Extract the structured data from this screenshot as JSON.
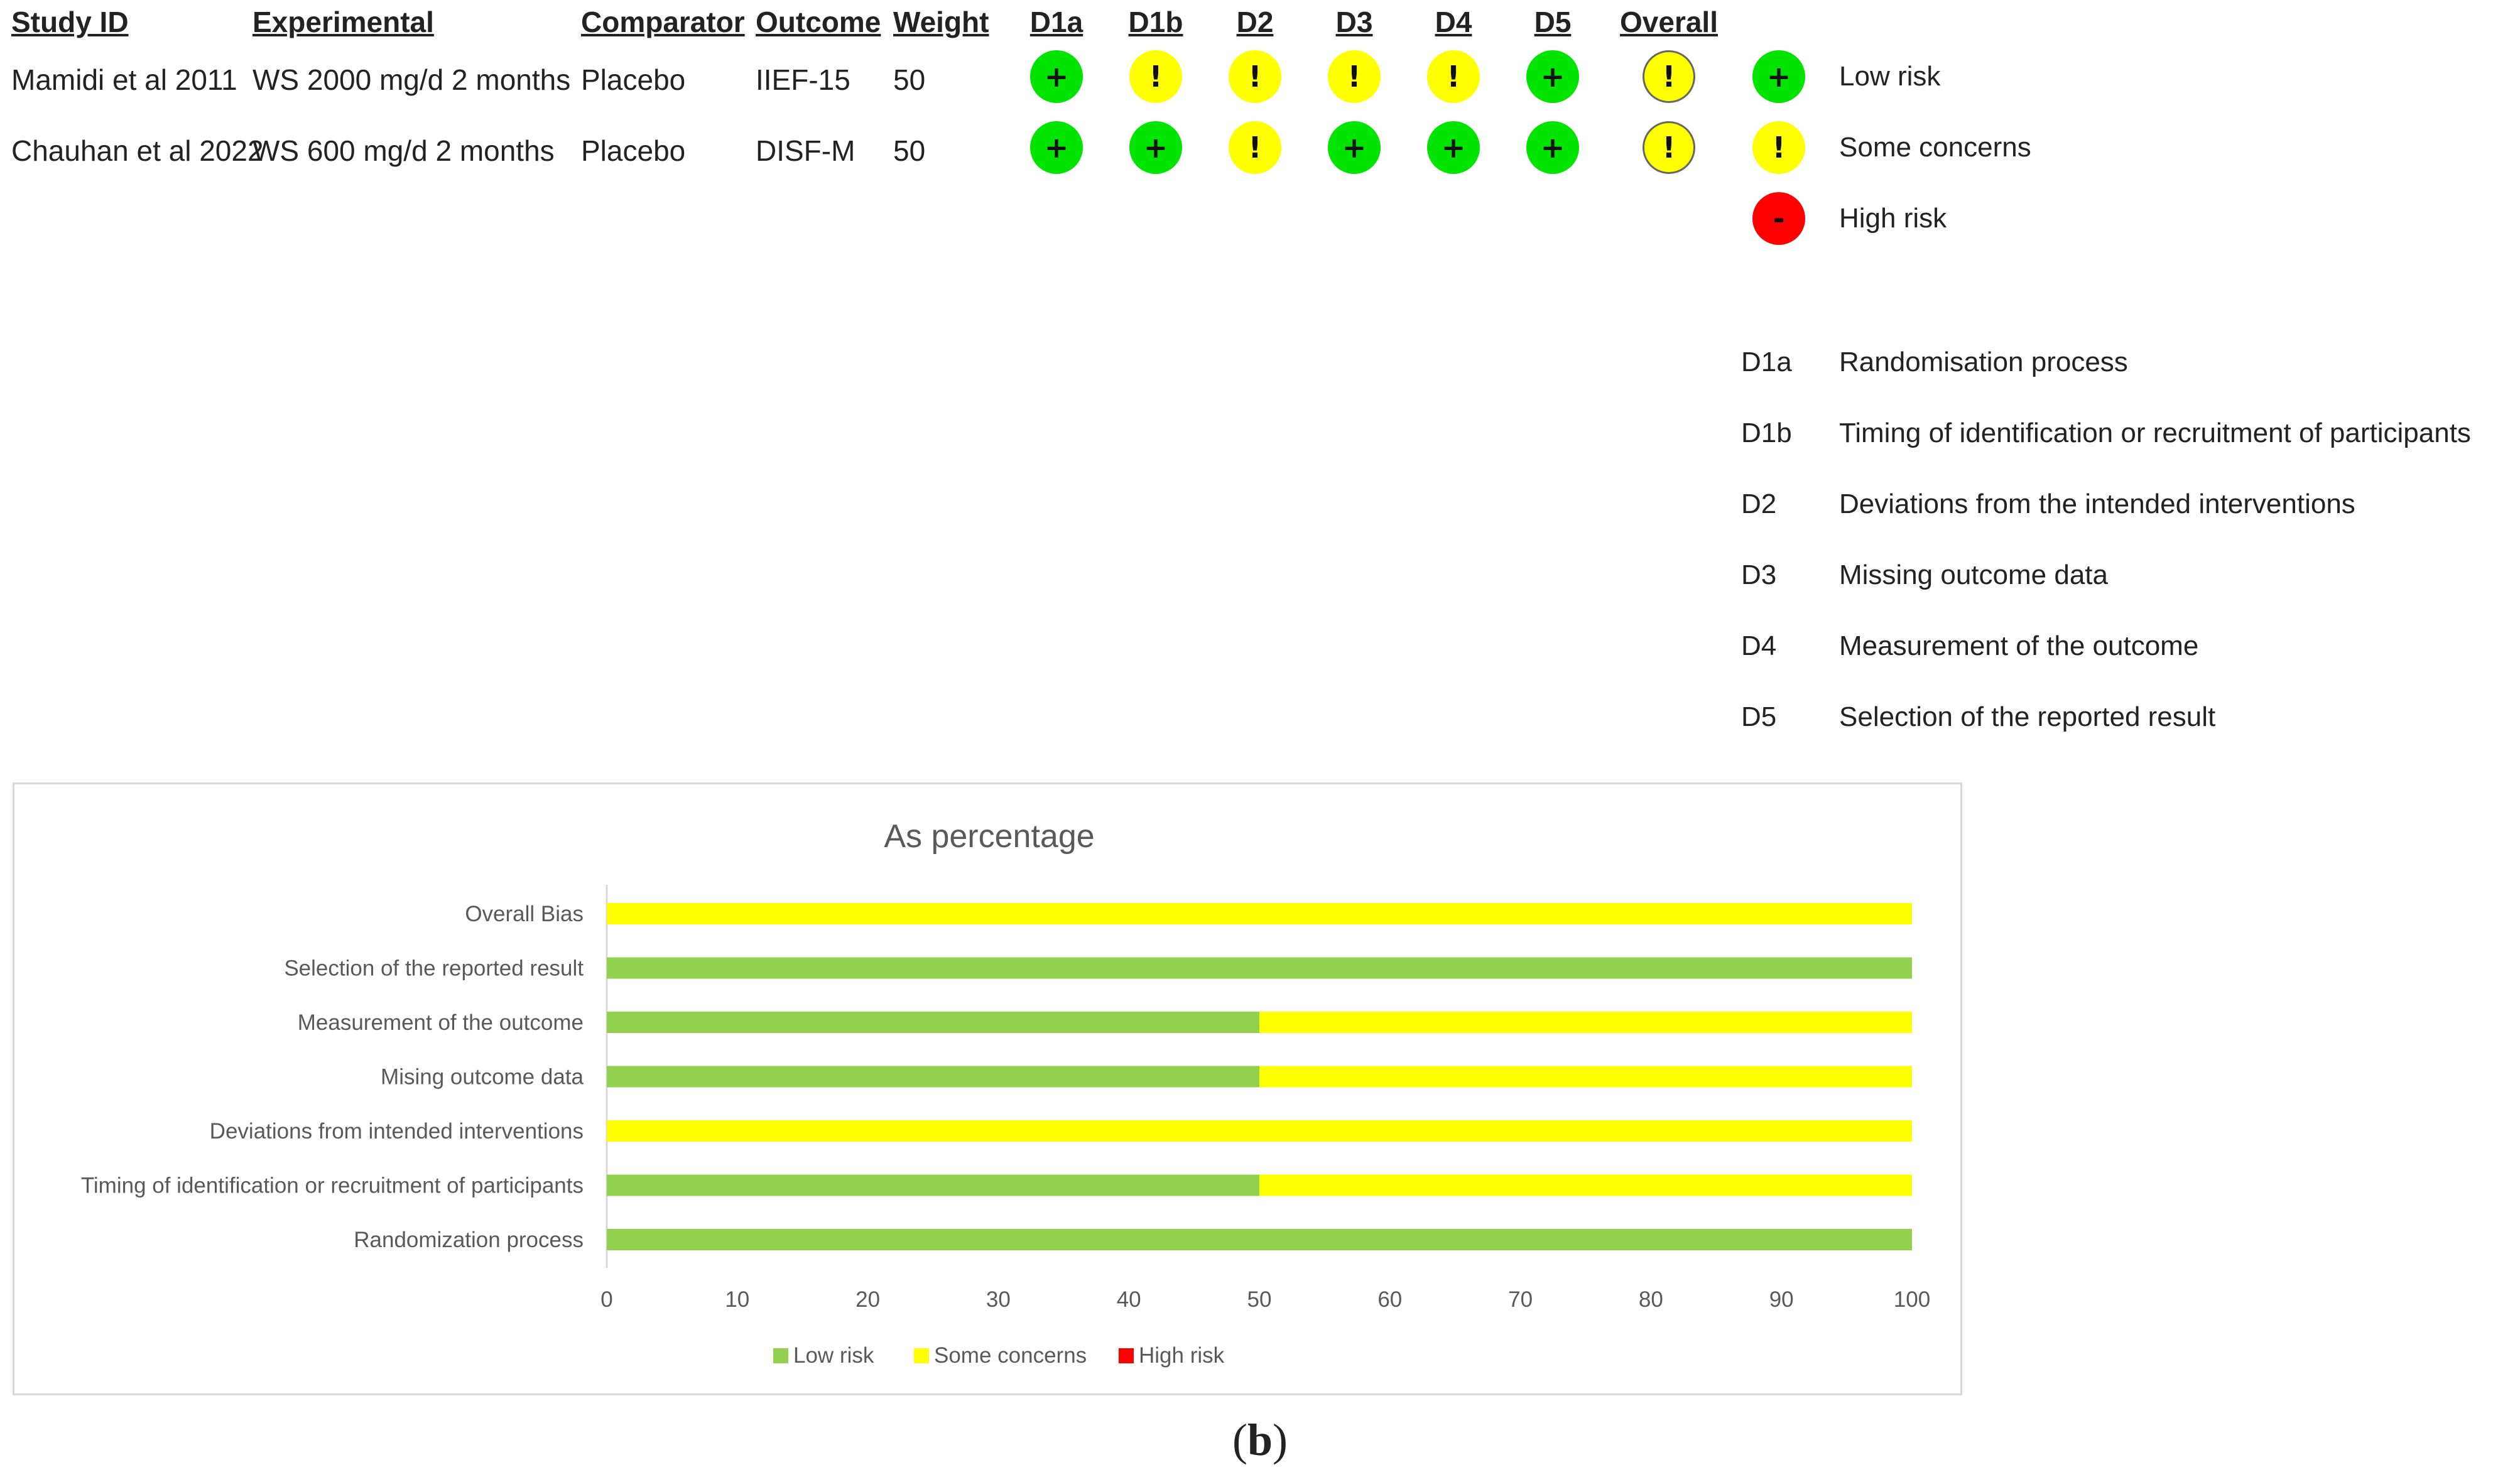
{
  "table": {
    "headers": {
      "study_id": "Study ID",
      "experimental": "Experimental",
      "comparator": "Comparator",
      "outcome": "Outcome",
      "weight": "Weight",
      "domains": [
        "D1a",
        "D1b",
        "D2",
        "D3",
        "D4",
        "D5",
        "Overall"
      ]
    },
    "rows": [
      {
        "study_id": "Mamidi et al 2011",
        "experimental": "WS 2000 mg/d 2 months",
        "comparator": "Placebo",
        "outcome": "IIEF-15",
        "weight": "50",
        "judgements": [
          "low",
          "some",
          "some",
          "some",
          "some",
          "low",
          "some"
        ]
      },
      {
        "study_id": "Chauhan et al 2022",
        "experimental": "WS 600 mg/d 2 months",
        "comparator": "Placebo",
        "outcome": "DISF-M",
        "weight": "50",
        "judgements": [
          "low",
          "low",
          "some",
          "low",
          "low",
          "low",
          "some"
        ]
      }
    ]
  },
  "symbols": {
    "low": "+",
    "some": "!",
    "high": "-"
  },
  "colors": {
    "low": "#00e400",
    "some": "#ffff00",
    "high": "#ff0000",
    "bar_low": "#92d050",
    "bar_some": "#ffff00",
    "bar_high": "#ff0000"
  },
  "legend": [
    {
      "key": "low",
      "label": "Low risk"
    },
    {
      "key": "some",
      "label": "Some concerns"
    },
    {
      "key": "high",
      "label": "High risk"
    }
  ],
  "domain_key": [
    {
      "code": "D1a",
      "description": "Randomisation process"
    },
    {
      "code": "D1b",
      "description": "Timing of identification or recruitment of participants"
    },
    {
      "code": "D2",
      "description": "Deviations from the intended interventions"
    },
    {
      "code": "D3",
      "description": "Missing outcome data"
    },
    {
      "code": "D4",
      "description": "Measurement of the outcome"
    },
    {
      "code": "D5",
      "description": "Selection of the reported result"
    }
  ],
  "chart_data": {
    "type": "bar",
    "orientation": "horizontal",
    "stacked": true,
    "title": "As percentage",
    "xlabel": "",
    "ylabel": "",
    "xlim": [
      0,
      100
    ],
    "xticks": [
      0,
      10,
      20,
      30,
      40,
      50,
      60,
      70,
      80,
      90,
      100
    ],
    "grid": false,
    "legend_position": "bottom",
    "categories": [
      "Overall Bias",
      "Selection of the reported result",
      "Measurement of the outcome",
      "Mising outcome data",
      "Deviations from intended interventions",
      "Timing of identification or recruitment of participants",
      "Randomization process"
    ],
    "series": [
      {
        "name": "Low risk",
        "color": "#92d050",
        "values": [
          0,
          100,
          50,
          50,
          0,
          50,
          100
        ]
      },
      {
        "name": "Some concerns",
        "color": "#ffff00",
        "values": [
          100,
          0,
          50,
          50,
          100,
          50,
          0
        ]
      },
      {
        "name": "High risk",
        "color": "#ff0000",
        "values": [
          0,
          0,
          0,
          0,
          0,
          0,
          0
        ]
      }
    ]
  },
  "caption": {
    "open": "(",
    "letter": "b",
    "close": ")"
  }
}
